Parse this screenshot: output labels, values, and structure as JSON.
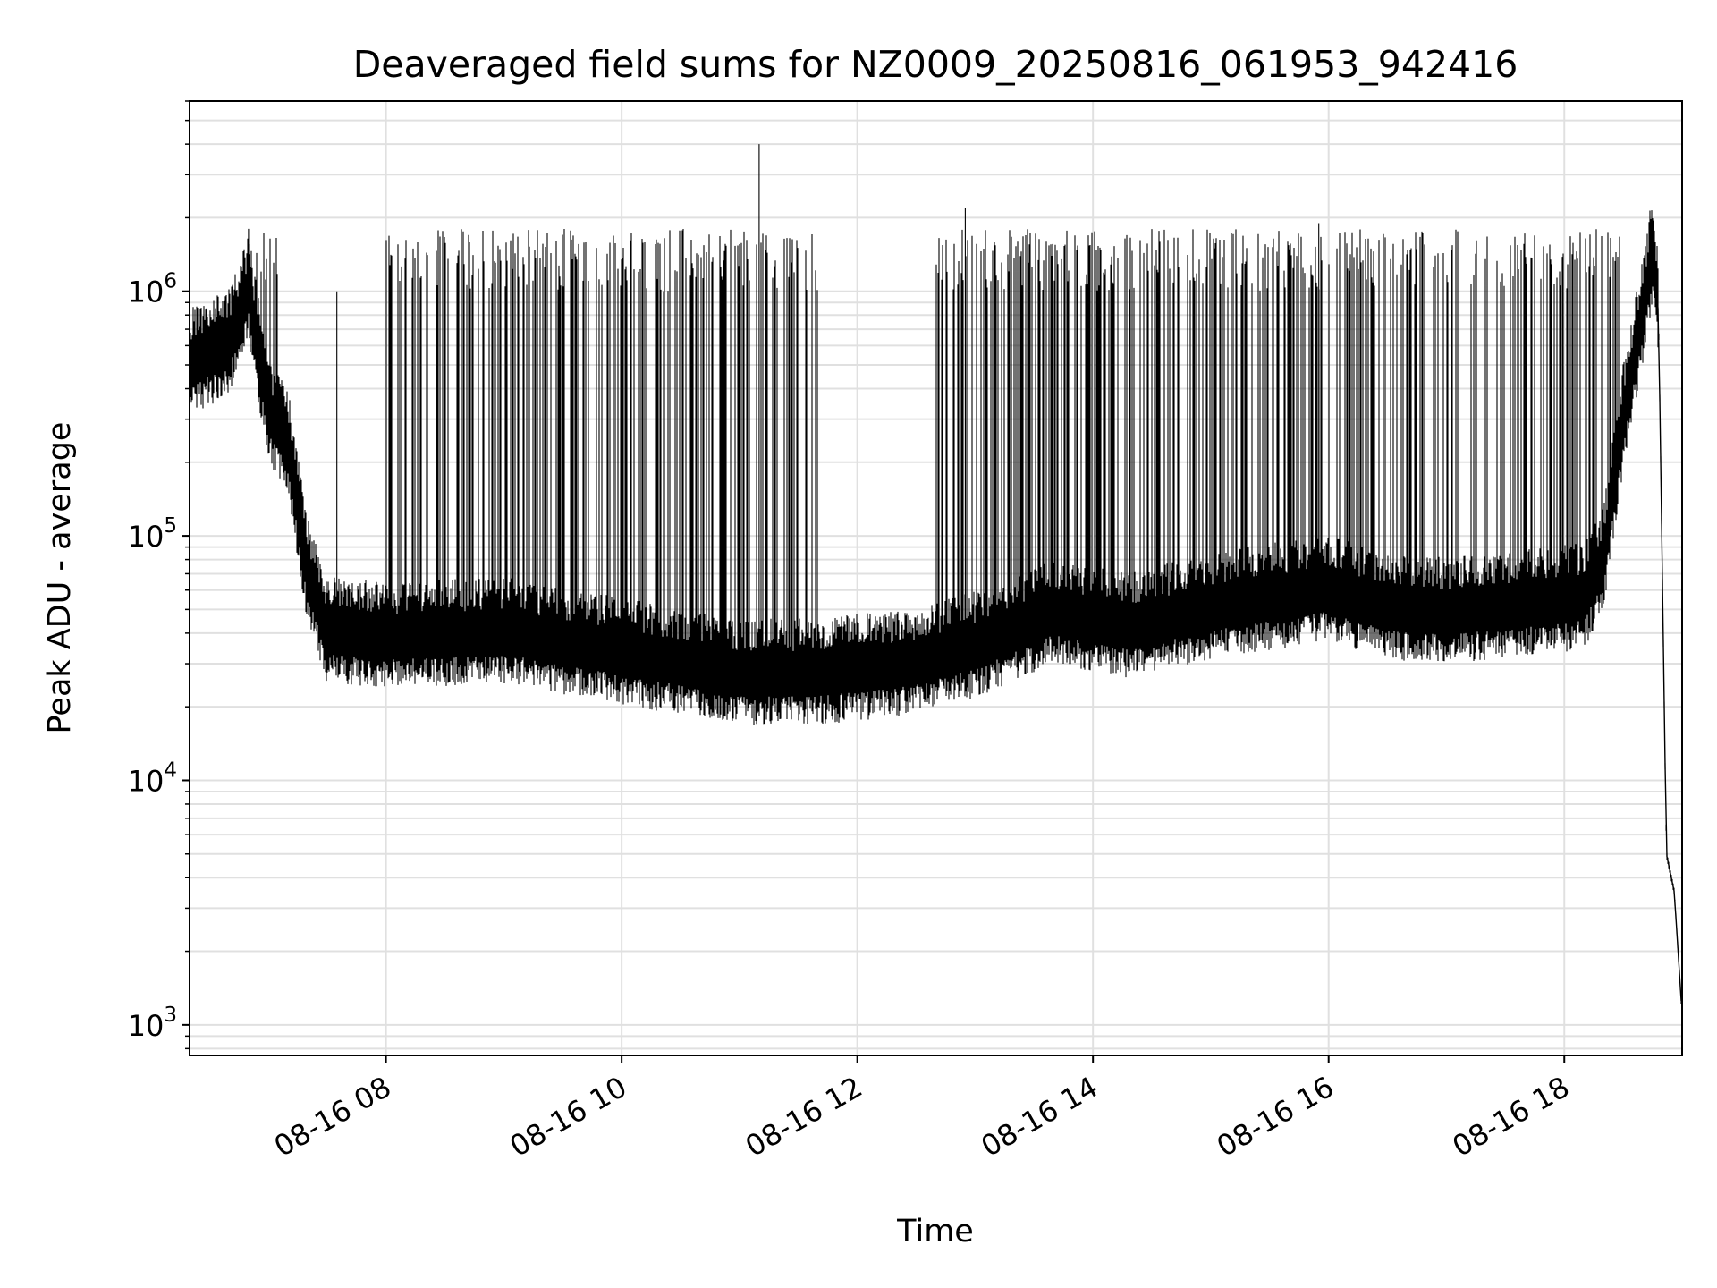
{
  "chart_data": {
    "type": "line",
    "title": "Deaveraged field sums for NZ0009_20250816_061953_942416",
    "xlabel": "Time",
    "ylabel": "Peak ADU - average",
    "yscale": "log",
    "ylim": [
      750,
      6000000
    ],
    "xlim": [
      "2025-08-16 06:20",
      "2025-08-16 19:00"
    ],
    "grid": true,
    "line_color": "#000000",
    "grid_color": "#e0e0e0",
    "x_ticks": [
      {
        "t": "2025-08-16 08:00",
        "label": "08-16 08"
      },
      {
        "t": "2025-08-16 10:00",
        "label": "08-16 10"
      },
      {
        "t": "2025-08-16 12:00",
        "label": "08-16 12"
      },
      {
        "t": "2025-08-16 14:00",
        "label": "08-16 14"
      },
      {
        "t": "2025-08-16 16:00",
        "label": "08-16 16"
      },
      {
        "t": "2025-08-16 18:00",
        "label": "08-16 18"
      }
    ],
    "y_ticks": [
      {
        "value": 1000,
        "base": "10",
        "exp": "3"
      },
      {
        "value": 10000,
        "base": "10",
        "exp": "4"
      },
      {
        "value": 100000,
        "base": "10",
        "exp": "5"
      },
      {
        "value": 1000000,
        "base": "10",
        "exp": "6"
      }
    ],
    "baseline": [
      [
        "2025-08-16 06:20",
        500000
      ],
      [
        "2025-08-16 06:40",
        600000
      ],
      [
        "2025-08-16 06:50",
        1000000
      ],
      [
        "2025-08-16 07:00",
        320000
      ],
      [
        "2025-08-16 07:10",
        240000
      ],
      [
        "2025-08-16 07:20",
        70000
      ],
      [
        "2025-08-16 07:30",
        40000
      ],
      [
        "2025-08-16 08:00",
        38000
      ],
      [
        "2025-08-16 09:00",
        40000
      ],
      [
        "2025-08-16 10:00",
        33000
      ],
      [
        "2025-08-16 11:00",
        27000
      ],
      [
        "2025-08-16 11:40",
        27000
      ],
      [
        "2025-08-16 12:30",
        30000
      ],
      [
        "2025-08-16 13:00",
        35000
      ],
      [
        "2025-08-16 13:40",
        48000
      ],
      [
        "2025-08-16 14:20",
        42000
      ],
      [
        "2025-08-16 15:00",
        50000
      ],
      [
        "2025-08-16 16:00",
        60000
      ],
      [
        "2025-08-16 16:30",
        50000
      ],
      [
        "2025-08-16 17:00",
        48000
      ],
      [
        "2025-08-16 18:10",
        55000
      ],
      [
        "2025-08-16 18:20",
        80000
      ],
      [
        "2025-08-16 18:30",
        300000
      ],
      [
        "2025-08-16 18:40",
        800000
      ],
      [
        "2025-08-16 18:45",
        1500000
      ],
      [
        "2025-08-16 18:48",
        800000
      ],
      [
        "2025-08-16 18:52",
        5000
      ],
      [
        "2025-08-16 18:56",
        3500
      ],
      [
        "2025-08-16 19:00",
        1100
      ]
    ],
    "notable_peaks": [
      {
        "t": "2025-08-16 11:10",
        "value": 4000000
      },
      {
        "t": "2025-08-16 12:55",
        "value": 2200000
      },
      {
        "t": "2025-08-16 15:55",
        "value": 1900000
      },
      {
        "t": "2025-08-16 07:35",
        "value": 1000000
      },
      {
        "t": "2025-08-16 06:50",
        "value": 1800000
      }
    ],
    "spike_range": [
      1000000,
      1800000
    ],
    "spike_windows": [
      [
        "2025-08-16 06:50",
        "2025-08-16 07:05"
      ],
      [
        "2025-08-16 08:00",
        "2025-08-16 11:40"
      ],
      [
        "2025-08-16 12:40",
        "2025-08-16 15:00"
      ],
      [
        "2025-08-16 15:00",
        "2025-08-16 18:30"
      ]
    ]
  }
}
